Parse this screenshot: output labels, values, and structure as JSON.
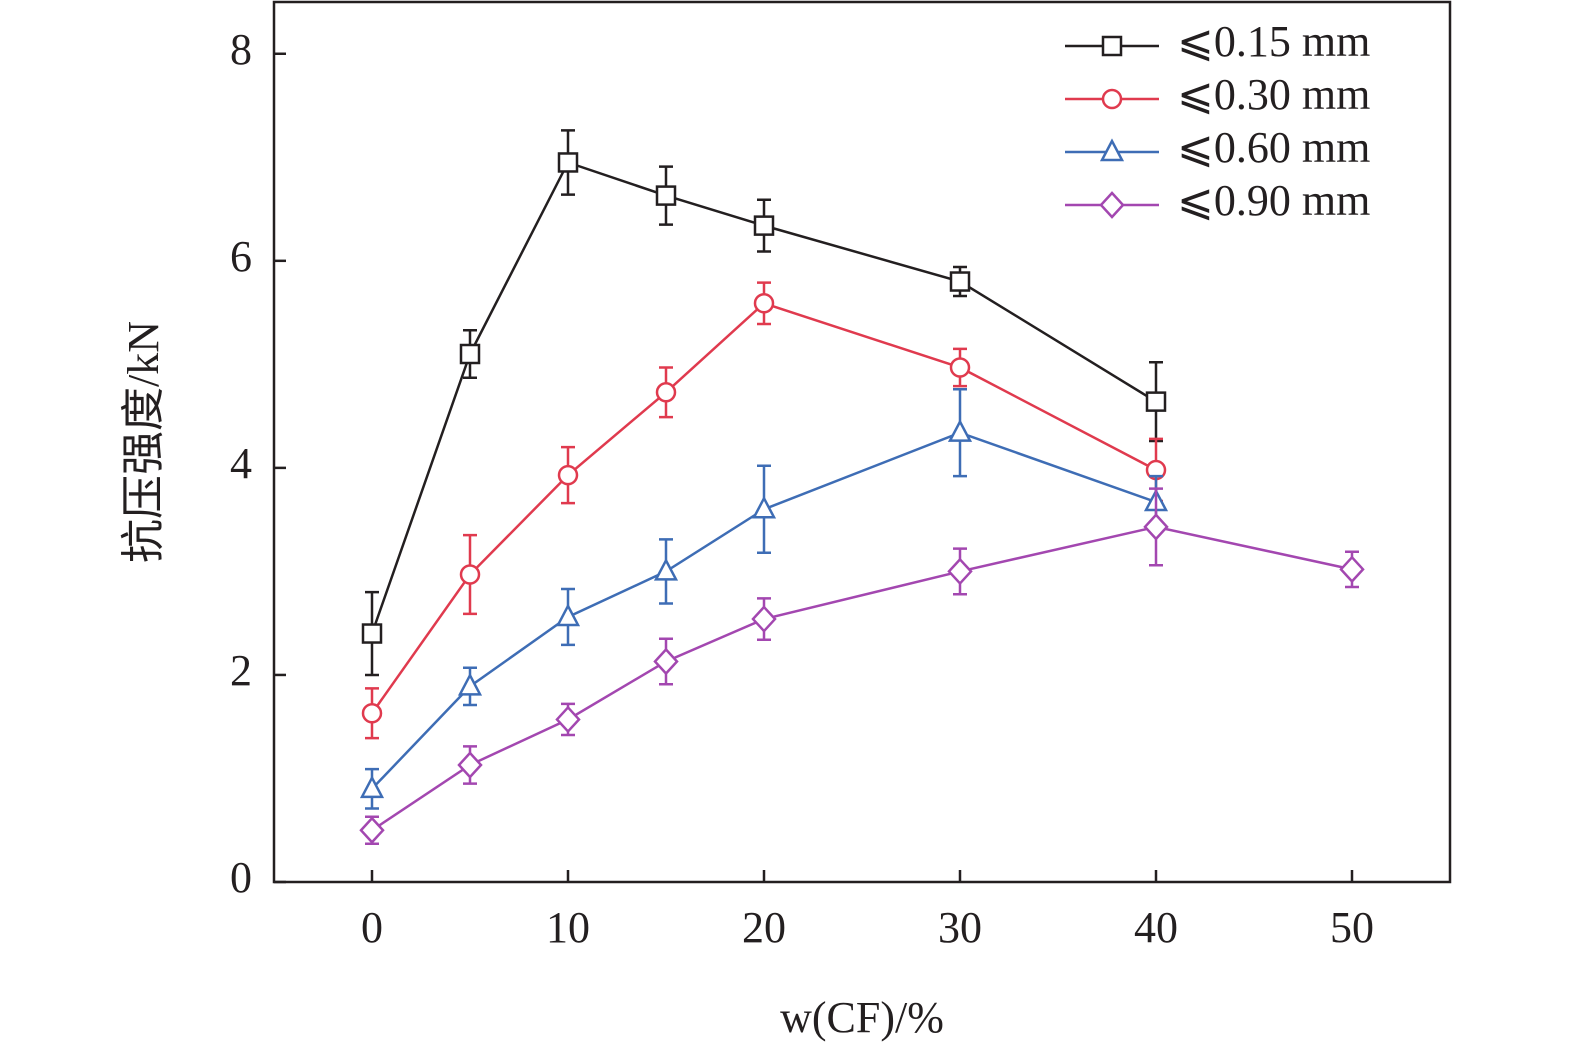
{
  "chart_data": {
    "type": "line",
    "x_label": "w(CF)/%",
    "y_label": "抗压强度/kN",
    "xlim": [
      -5,
      55
    ],
    "xticks": [
      0,
      10,
      20,
      30,
      40,
      50
    ],
    "ylim": [
      0,
      8.5
    ],
    "yticks": [
      0,
      2,
      4,
      6,
      8
    ],
    "legend": "upper right",
    "series": [
      {
        "name": "⩽0.15 mm",
        "color": "#231f20",
        "marker": "square",
        "x": [
          0,
          5,
          10,
          15,
          20,
          30,
          40
        ],
        "values": [
          2.4,
          5.1,
          6.95,
          6.63,
          6.34,
          5.8,
          4.64
        ],
        "errors": [
          0.4,
          0.23,
          0.31,
          0.28,
          0.25,
          0.14,
          0.38
        ]
      },
      {
        "name": "⩽0.30 mm",
        "color": "#e03a4e",
        "marker": "circle",
        "x": [
          0,
          5,
          10,
          15,
          20,
          30,
          40
        ],
        "values": [
          1.63,
          2.97,
          3.93,
          4.73,
          5.59,
          4.97,
          3.98
        ],
        "errors": [
          0.24,
          0.38,
          0.27,
          0.24,
          0.2,
          0.18,
          0.3
        ]
      },
      {
        "name": "⩽0.60 mm",
        "color": "#3e6db5",
        "marker": "triangle",
        "x": [
          0,
          5,
          10,
          15,
          20,
          30,
          40
        ],
        "values": [
          0.9,
          1.89,
          2.56,
          3.0,
          3.6,
          4.34,
          3.67
        ],
        "errors": [
          0.19,
          0.18,
          0.27,
          0.31,
          0.42,
          0.42,
          0.25
        ]
      },
      {
        "name": "⩽0.90 mm",
        "color": "#a347b0",
        "marker": "diamond",
        "x": [
          0,
          5,
          10,
          15,
          20,
          30,
          40,
          50
        ],
        "values": [
          0.5,
          1.13,
          1.57,
          2.13,
          2.54,
          3.0,
          3.43,
          3.02
        ],
        "errors": [
          0.13,
          0.18,
          0.15,
          0.22,
          0.2,
          0.22,
          0.37,
          0.17
        ]
      }
    ]
  }
}
